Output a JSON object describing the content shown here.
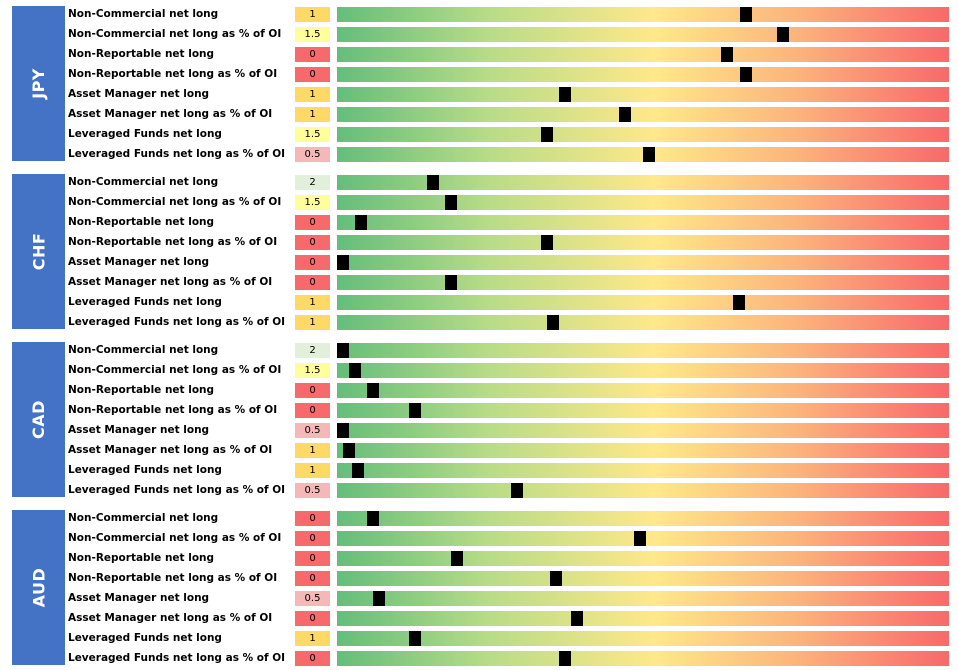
{
  "colors": {
    "section_bg": "#4472c4",
    "score_colors": {
      "0": "#f8696b",
      "0.5": "#f4b8b8",
      "1": "#ffd966",
      "1.5": "#ffff99",
      "2": "#e2efda"
    },
    "gradient": [
      "#63be7b",
      "#ffe88a",
      "#f8696b"
    ]
  },
  "sections": [
    {
      "name": "JPY",
      "rows": [
        {
          "label": "Non-Commercial net long",
          "score": "1",
          "marker_pos": 0.668
        },
        {
          "label": "Non-Commercial net long as % of OI",
          "score": "1.5",
          "marker_pos": 0.728
        },
        {
          "label": "Non-Reportable net long",
          "score": "0",
          "marker_pos": 0.638
        },
        {
          "label": "Non-Reportable net long as % of OI",
          "score": "0",
          "marker_pos": 0.668
        },
        {
          "label": "Asset Manager net long",
          "score": "1",
          "marker_pos": 0.373
        },
        {
          "label": "Asset Manager net long as % of OI",
          "score": "1",
          "marker_pos": 0.471
        },
        {
          "label": "Leveraged Funds net long",
          "score": "1.5",
          "marker_pos": 0.343
        },
        {
          "label": "Leveraged Funds net long as % of OI",
          "score": "0.5",
          "marker_pos": 0.51
        }
      ]
    },
    {
      "name": "CHF",
      "rows": [
        {
          "label": "Non-Commercial net long",
          "score": "2",
          "marker_pos": 0.157
        },
        {
          "label": "Non-Commercial net long as % of OI",
          "score": "1.5",
          "marker_pos": 0.186
        },
        {
          "label": "Non-Reportable net long",
          "score": "0",
          "marker_pos": 0.039
        },
        {
          "label": "Non-Reportable net long as % of OI",
          "score": "0",
          "marker_pos": 0.343
        },
        {
          "label": "Asset Manager net long",
          "score": "0",
          "marker_pos": 0.01
        },
        {
          "label": "Asset Manager net long as % of OI",
          "score": "0",
          "marker_pos": 0.186
        },
        {
          "label": "Leveraged Funds net long",
          "score": "1",
          "marker_pos": 0.657
        },
        {
          "label": "Leveraged Funds net long as % of OI",
          "score": "1",
          "marker_pos": 0.353
        }
      ]
    },
    {
      "name": "CAD",
      "rows": [
        {
          "label": "Non-Commercial net long",
          "score": "2",
          "marker_pos": 0.01
        },
        {
          "label": "Non-Commercial net long as % of OI",
          "score": "1.5",
          "marker_pos": 0.029
        },
        {
          "label": "Non-Reportable net long",
          "score": "0",
          "marker_pos": 0.059
        },
        {
          "label": "Non-Reportable net long as % of OI",
          "score": "0",
          "marker_pos": 0.127
        },
        {
          "label": "Asset Manager net long",
          "score": "0.5",
          "marker_pos": 0.01
        },
        {
          "label": "Asset Manager net long as % of OI",
          "score": "1",
          "marker_pos": 0.02
        },
        {
          "label": "Leveraged Funds net long",
          "score": "1",
          "marker_pos": 0.034
        },
        {
          "label": "Leveraged Funds net long as % of OI",
          "score": "0.5",
          "marker_pos": 0.294
        }
      ]
    },
    {
      "name": "AUD",
      "rows": [
        {
          "label": "Non-Commercial net long",
          "score": "0",
          "marker_pos": 0.059
        },
        {
          "label": "Non-Commercial net long as % of OI",
          "score": "0",
          "marker_pos": 0.495
        },
        {
          "label": "Non-Reportable net long",
          "score": "0",
          "marker_pos": 0.196
        },
        {
          "label": "Non-Reportable net long as % of OI",
          "score": "0",
          "marker_pos": 0.358
        },
        {
          "label": "Asset Manager net long",
          "score": "0.5",
          "marker_pos": 0.069
        },
        {
          "label": "Asset Manager net long as % of OI",
          "score": "0",
          "marker_pos": 0.392
        },
        {
          "label": "Leveraged Funds net long",
          "score": "1",
          "marker_pos": 0.127
        },
        {
          "label": "Leveraged Funds net long as % of OI",
          "score": "0",
          "marker_pos": 0.373
        }
      ]
    }
  ]
}
